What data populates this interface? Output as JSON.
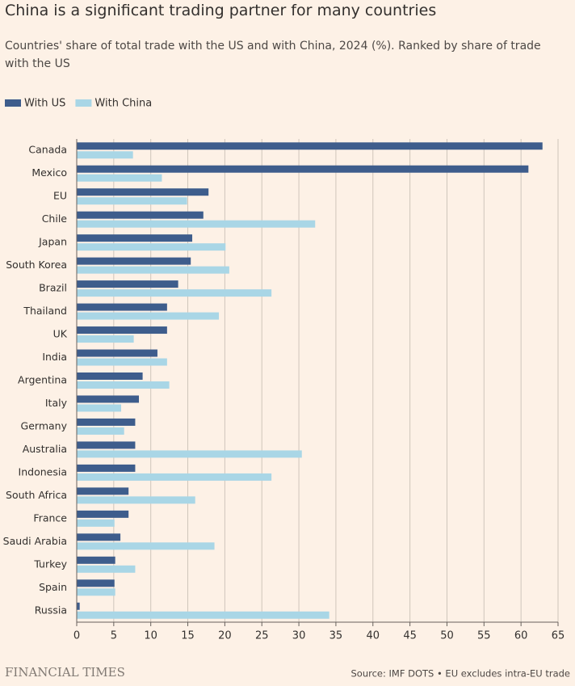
{
  "chart_data": {
    "type": "hbar",
    "title": "China is a significant trading partner for many countries",
    "subtitle": "Countries' share of total trade with the US and with China, 2024 (%). Ranked by share of trade with the US",
    "categories": [
      "Canada",
      "Mexico",
      "EU",
      "Chile",
      "Japan",
      "South Korea",
      "Brazil",
      "Thailand",
      "UK",
      "India",
      "Argentina",
      "Italy",
      "Germany",
      "Australia",
      "Indonesia",
      "South Africa",
      "France",
      "Saudi Arabia",
      "Turkey",
      "Spain",
      "Russia"
    ],
    "series": [
      {
        "name": "With US",
        "color": "#3e5d8c",
        "values": [
          62.9,
          61.0,
          17.8,
          17.1,
          15.6,
          15.4,
          13.7,
          12.2,
          12.2,
          10.9,
          8.9,
          8.4,
          7.9,
          7.9,
          7.9,
          7.0,
          7.0,
          5.9,
          5.2,
          5.1,
          0.4
        ]
      },
      {
        "name": "With China",
        "color": "#a9d6e6",
        "values": [
          7.6,
          11.5,
          14.9,
          32.2,
          20.1,
          20.6,
          26.3,
          19.2,
          7.7,
          12.2,
          12.5,
          6.0,
          6.4,
          30.4,
          26.3,
          16.0,
          5.1,
          18.6,
          7.9,
          5.2,
          34.1
        ]
      }
    ],
    "xlim": [
      0,
      65
    ],
    "xticks": [
      0,
      5,
      10,
      15,
      20,
      25,
      30,
      35,
      40,
      45,
      50,
      55,
      60,
      65
    ],
    "grid": true,
    "brand": "FINANCIAL TIMES",
    "source": "Source: IMF DOTS • EU excludes intra-EU trade"
  }
}
